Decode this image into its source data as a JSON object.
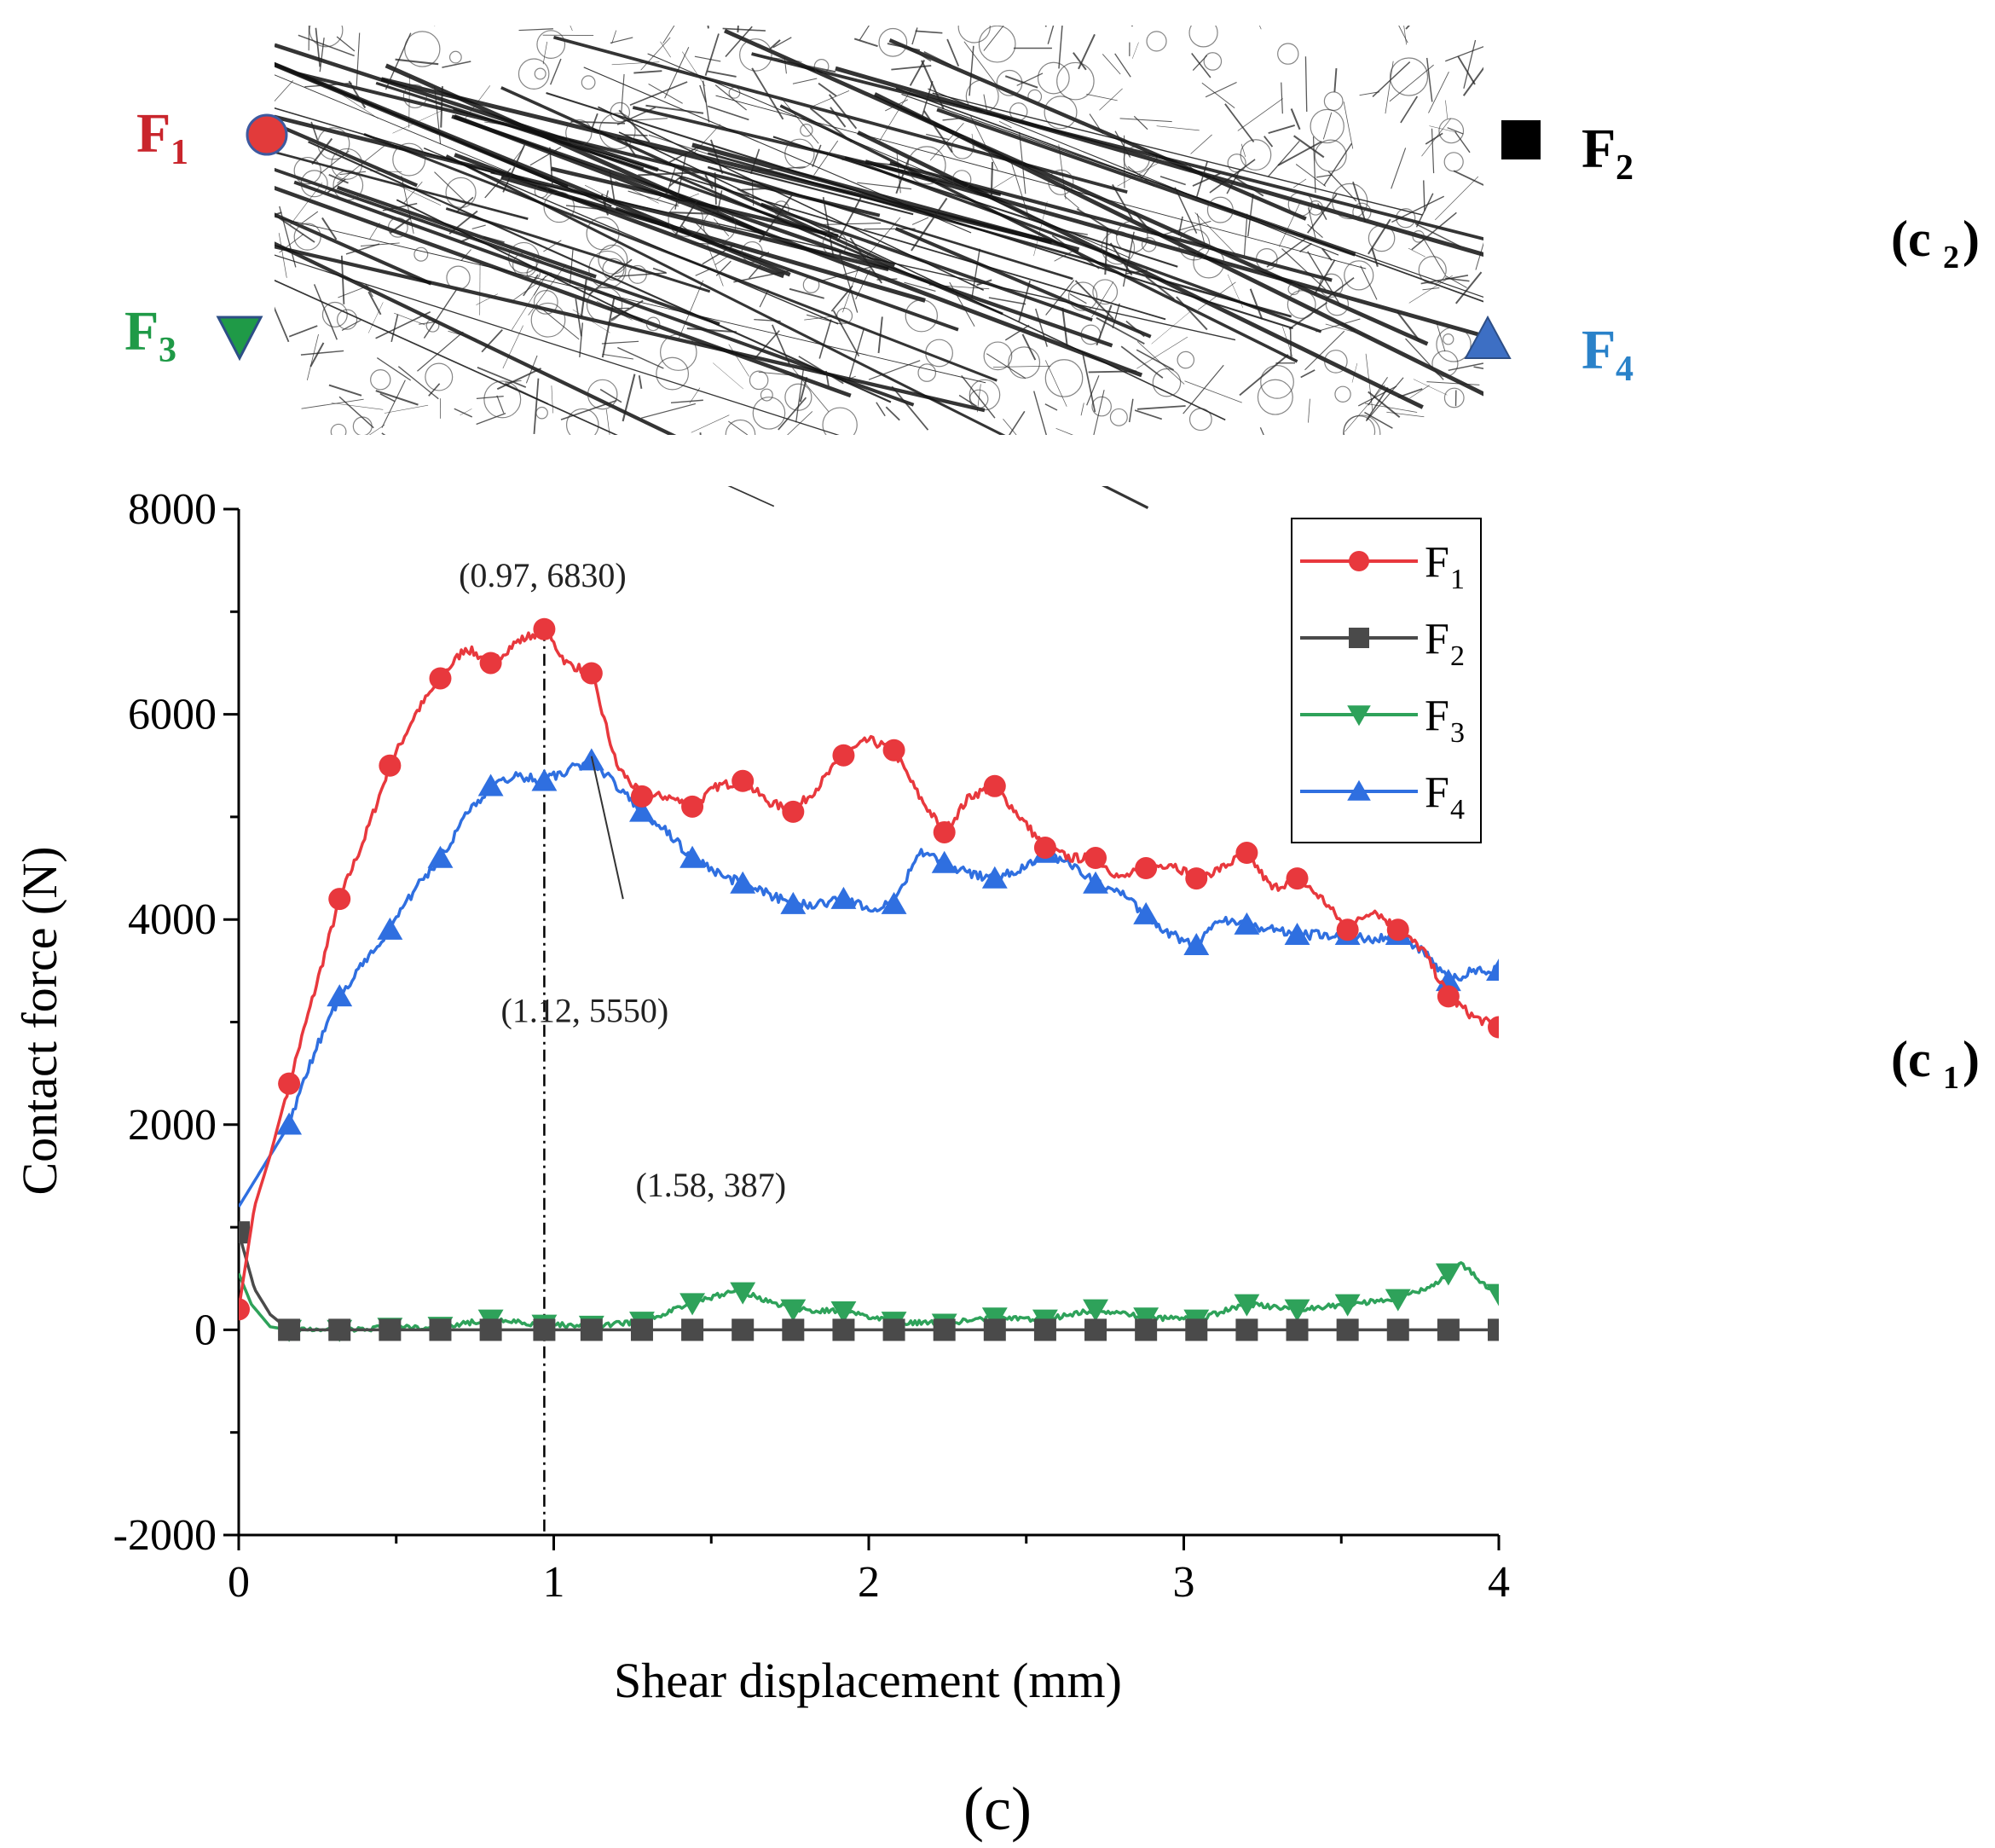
{
  "panel_labels": {
    "c2": "(c",
    "c2_sub": "2",
    "c1": "(c",
    "c1_sub": "1",
    "close": ")",
    "main": "(c)"
  },
  "network": {
    "markers": [
      {
        "key": "F",
        "sub": "1",
        "color": "#e23b3b",
        "shape": "circle"
      },
      {
        "key": "F",
        "sub": "2",
        "color": "#000000",
        "shape": "square"
      },
      {
        "key": "F",
        "sub": "3",
        "color": "#1f9a47",
        "shape": "triangle-down"
      },
      {
        "key": "F",
        "sub": "4",
        "color": "#3d6fc4",
        "shape": "triangle-up"
      }
    ],
    "label_colors": [
      "#c9252c",
      "#000000",
      "#1f9a47",
      "#2a82c9"
    ]
  },
  "chart_data": {
    "type": "line",
    "xlabel": "Shear displacement (mm)",
    "ylabel": "Contact force (N)",
    "xlim": [
      0,
      4
    ],
    "ylim": [
      -2000,
      8000
    ],
    "xticks": [
      0,
      1,
      2,
      3,
      4
    ],
    "yticks": [
      -2000,
      0,
      2000,
      4000,
      6000,
      8000
    ],
    "xtick_labels": [
      "0",
      "1",
      "2",
      "3",
      "4"
    ],
    "ytick_labels": [
      "-2000",
      "0",
      "2000",
      "4000",
      "6000",
      "8000"
    ],
    "legend_position": "top-right",
    "series": [
      {
        "name": "F",
        "sub": "1",
        "color": "#e8383d",
        "marker": "circle",
        "x": [
          0,
          0.05,
          0.1,
          0.16,
          0.25,
          0.32,
          0.4,
          0.48,
          0.56,
          0.64,
          0.72,
          0.8,
          0.88,
          0.97,
          1.04,
          1.12,
          1.2,
          1.28,
          1.36,
          1.44,
          1.52,
          1.6,
          1.68,
          1.76,
          1.84,
          1.92,
          2.0,
          2.08,
          2.16,
          2.24,
          2.32,
          2.4,
          2.48,
          2.56,
          2.64,
          2.72,
          2.8,
          2.88,
          2.96,
          3.04,
          3.12,
          3.2,
          3.28,
          3.36,
          3.44,
          3.52,
          3.6,
          3.68,
          3.76,
          3.84,
          3.92,
          4.0
        ],
        "y": [
          200,
          1200,
          1700,
          2400,
          3400,
          4200,
          4800,
          5500,
          6000,
          6350,
          6650,
          6500,
          6700,
          6830,
          6500,
          6400,
          5500,
          5200,
          5200,
          5100,
          5300,
          5350,
          5150,
          5050,
          5300,
          5600,
          5750,
          5650,
          5200,
          4850,
          5200,
          5300,
          5000,
          4700,
          4600,
          4600,
          4400,
          4500,
          4550,
          4400,
          4500,
          4650,
          4300,
          4400,
          4200,
          3900,
          4100,
          3900,
          3700,
          3250,
          3050,
          2950
        ],
        "marker_x": [
          0,
          0.16,
          0.32,
          0.48,
          0.64,
          0.8,
          0.97,
          1.12,
          1.28,
          1.44,
          1.6,
          1.76,
          1.92,
          2.08,
          2.24,
          2.4,
          2.56,
          2.72,
          2.88,
          3.04,
          3.2,
          3.36,
          3.52,
          3.68,
          3.84,
          4.0
        ]
      },
      {
        "name": "F",
        "sub": "2",
        "color": "#4a4a4a",
        "marker": "square",
        "x": [
          0,
          0.05,
          0.1,
          0.16,
          0.5,
          1.0,
          2.0,
          3.0,
          4.0
        ],
        "y": [
          950,
          400,
          150,
          0,
          0,
          0,
          0,
          0,
          0
        ],
        "marker_x": [
          0,
          0.16,
          0.32,
          0.48,
          0.64,
          0.8,
          0.97,
          1.12,
          1.28,
          1.44,
          1.6,
          1.76,
          1.92,
          2.08,
          2.24,
          2.4,
          2.56,
          2.72,
          2.88,
          3.04,
          3.2,
          3.36,
          3.52,
          3.68,
          3.84,
          4.0
        ]
      },
      {
        "name": "F",
        "sub": "3",
        "color": "#2ea25a",
        "marker": "triangle-down",
        "x": [
          0,
          0.04,
          0.1,
          0.16,
          0.32,
          0.48,
          0.64,
          0.8,
          0.97,
          1.12,
          1.28,
          1.44,
          1.58,
          1.76,
          1.92,
          2.08,
          2.24,
          2.4,
          2.56,
          2.72,
          2.88,
          3.04,
          3.2,
          3.36,
          3.52,
          3.68,
          3.8,
          3.88,
          3.95,
          4.0
        ],
        "y": [
          550,
          250,
          30,
          0,
          0,
          20,
          30,
          100,
          50,
          40,
          80,
          260,
          387,
          200,
          180,
          80,
          60,
          120,
          100,
          200,
          120,
          100,
          250,
          200,
          250,
          300,
          450,
          650,
          450,
          350
        ],
        "marker_x": [
          0.16,
          0.32,
          0.48,
          0.64,
          0.8,
          0.97,
          1.12,
          1.28,
          1.44,
          1.6,
          1.76,
          1.92,
          2.08,
          2.24,
          2.4,
          2.56,
          2.72,
          2.88,
          3.04,
          3.2,
          3.36,
          3.52,
          3.68,
          3.84,
          4.0
        ]
      },
      {
        "name": "F",
        "sub": "4",
        "color": "#2f6fe0",
        "marker": "triangle-up",
        "x": [
          0,
          0.08,
          0.16,
          0.24,
          0.32,
          0.4,
          0.48,
          0.56,
          0.64,
          0.72,
          0.8,
          0.88,
          0.97,
          1.04,
          1.12,
          1.2,
          1.28,
          1.36,
          1.44,
          1.52,
          1.6,
          1.68,
          1.76,
          1.84,
          1.92,
          2.0,
          2.08,
          2.16,
          2.24,
          2.32,
          2.4,
          2.48,
          2.56,
          2.64,
          2.72,
          2.8,
          2.88,
          2.96,
          3.04,
          3.12,
          3.2,
          3.28,
          3.36,
          3.44,
          3.52,
          3.6,
          3.68,
          3.76,
          3.84,
          3.92,
          4.0
        ],
        "y": [
          1200,
          1600,
          2000,
          2700,
          3250,
          3600,
          3900,
          4300,
          4600,
          5000,
          5300,
          5400,
          5350,
          5450,
          5550,
          5300,
          5050,
          4850,
          4600,
          4450,
          4350,
          4250,
          4150,
          4150,
          4200,
          4100,
          4150,
          4650,
          4550,
          4450,
          4400,
          4500,
          4650,
          4550,
          4350,
          4250,
          4050,
          3850,
          3750,
          4000,
          3950,
          3900,
          3850,
          3850,
          3850,
          3800,
          3850,
          3700,
          3400,
          3500,
          3500
        ],
        "marker_x": [
          0.16,
          0.32,
          0.48,
          0.64,
          0.8,
          0.97,
          1.12,
          1.28,
          1.44,
          1.6,
          1.76,
          1.92,
          2.08,
          2.24,
          2.4,
          2.56,
          2.72,
          2.88,
          3.04,
          3.2,
          3.36,
          3.52,
          3.68,
          3.84,
          4.0
        ]
      }
    ],
    "annotations": [
      {
        "text": "(0.97, 6830)",
        "x": 0.97,
        "y": 6830
      },
      {
        "text": "(1.12, 5550)",
        "x": 1.12,
        "y": 5550
      },
      {
        "text": "(1.58, 387)",
        "x": 1.58,
        "y": 387
      }
    ],
    "reference_line_x": 0.97
  }
}
